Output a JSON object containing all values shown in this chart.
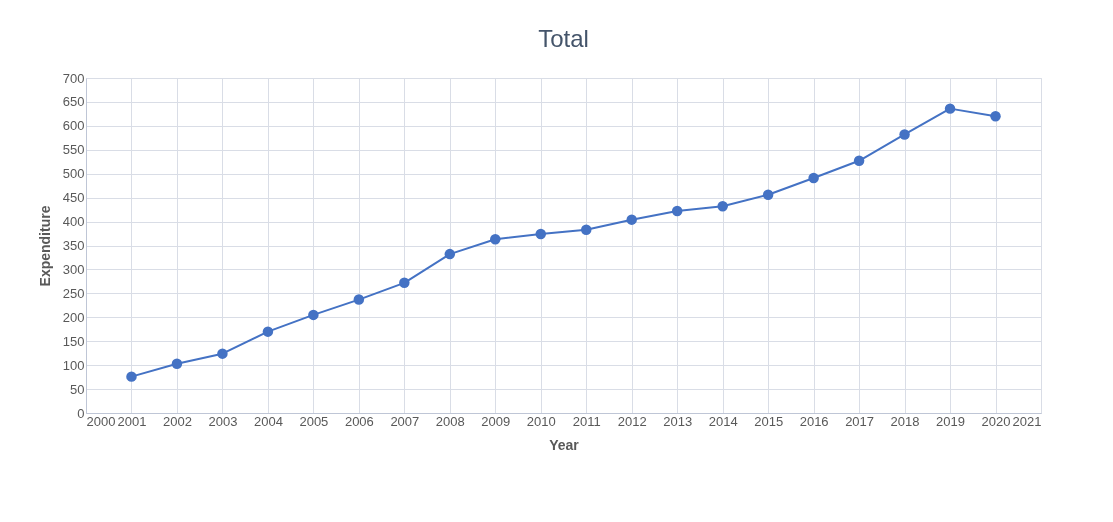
{
  "chart_data": {
    "type": "line",
    "title": "Total",
    "xlabel": "Year",
    "ylabel": "Expenditure",
    "x": [
      2001,
      2002,
      2003,
      2004,
      2005,
      2006,
      2007,
      2008,
      2009,
      2010,
      2011,
      2012,
      2013,
      2014,
      2015,
      2016,
      2017,
      2018,
      2019,
      2020
    ],
    "series": [
      {
        "color": "#4472c4",
        "values": [
          76,
          103,
          124,
          170,
          205,
          237,
          272,
          332,
          363,
          374,
          383,
          404,
          422,
          432,
          456,
          491,
          527,
          582,
          636,
          620
        ]
      }
    ],
    "xlim": [
      2000,
      2021
    ],
    "xticks": [
      2000,
      2001,
      2002,
      2003,
      2004,
      2005,
      2006,
      2007,
      2008,
      2009,
      2010,
      2011,
      2012,
      2013,
      2014,
      2015,
      2016,
      2017,
      2018,
      2019,
      2020,
      2021
    ],
    "ylim": [
      0,
      700
    ],
    "yticks": [
      0,
      50,
      100,
      150,
      200,
      250,
      300,
      350,
      400,
      450,
      500,
      550,
      600,
      650,
      700
    ],
    "grid": true,
    "marker": "circle",
    "line_style": "solid"
  }
}
